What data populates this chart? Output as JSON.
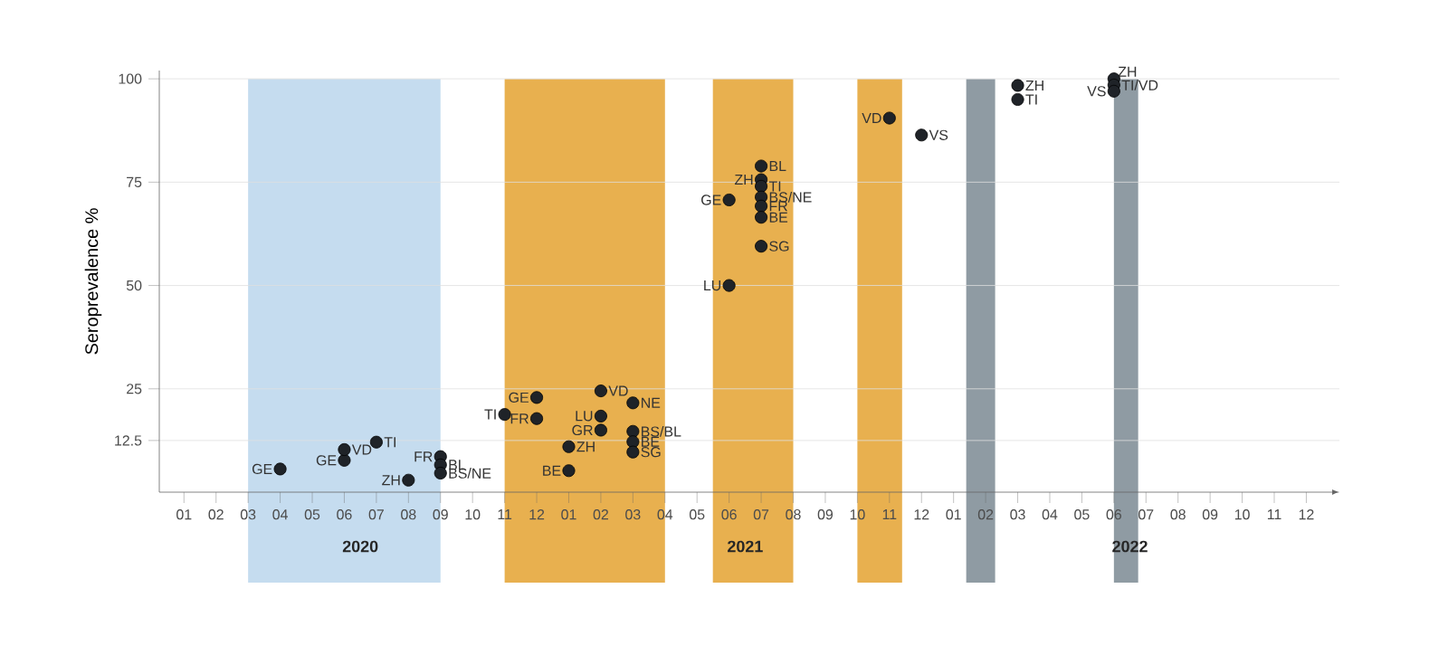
{
  "chart_data": {
    "type": "scatter",
    "ylabel": "Seroprevalence %",
    "xlim": [
      "2019-12-08",
      "2023-01-02"
    ],
    "ylim": [
      0,
      102
    ],
    "xticks": [
      {
        "value": "2020-01",
        "label": "01"
      },
      {
        "value": "2020-02",
        "label": "02"
      },
      {
        "value": "2020-03",
        "label": "03"
      },
      {
        "value": "2020-04",
        "label": "04"
      },
      {
        "value": "2020-05",
        "label": "05"
      },
      {
        "value": "2020-06",
        "label": "06"
      },
      {
        "value": "2020-07",
        "label": "07"
      },
      {
        "value": "2020-08",
        "label": "08"
      },
      {
        "value": "2020-09",
        "label": "09"
      },
      {
        "value": "2020-10",
        "label": "10"
      },
      {
        "value": "2020-11",
        "label": "11"
      },
      {
        "value": "2020-12",
        "label": "12"
      },
      {
        "value": "2021-01",
        "label": "01"
      },
      {
        "value": "2021-02",
        "label": "02"
      },
      {
        "value": "2021-03",
        "label": "03"
      },
      {
        "value": "2021-04",
        "label": "04"
      },
      {
        "value": "2021-05",
        "label": "05"
      },
      {
        "value": "2021-06",
        "label": "06"
      },
      {
        "value": "2021-07",
        "label": "07"
      },
      {
        "value": "2021-08",
        "label": "08"
      },
      {
        "value": "2021-09",
        "label": "09"
      },
      {
        "value": "2021-10",
        "label": "10"
      },
      {
        "value": "2021-11",
        "label": "11"
      },
      {
        "value": "2021-12",
        "label": "12"
      },
      {
        "value": "2022-01",
        "label": "01"
      },
      {
        "value": "2022-02",
        "label": "02"
      },
      {
        "value": "2022-03",
        "label": "03"
      },
      {
        "value": "2022-04",
        "label": "04"
      },
      {
        "value": "2022-05",
        "label": "05"
      },
      {
        "value": "2022-06",
        "label": "06"
      },
      {
        "value": "2022-07",
        "label": "07"
      },
      {
        "value": "2022-08",
        "label": "08"
      },
      {
        "value": "2022-09",
        "label": "09"
      },
      {
        "value": "2022-10",
        "label": "10"
      },
      {
        "value": "2022-11",
        "label": "11"
      },
      {
        "value": "2022-12",
        "label": "12"
      }
    ],
    "yticks": [
      12.5,
      25,
      50,
      75,
      100
    ],
    "grid": "y",
    "marker": "circle",
    "series": [
      {
        "color": "#1f2328",
        "x": [
          "2020-04",
          "2020-06",
          "2020-06",
          "2020-07",
          "2020-08",
          "2020-09",
          "2020-09",
          "2020-09",
          "2020-11",
          "2020-12",
          "2020-12",
          "2021-01",
          "2021-01",
          "2021-02",
          "2021-02",
          "2021-02",
          "2021-03",
          "2021-03",
          "2021-03",
          "2021-03",
          "2021-06",
          "2021-06",
          "2021-07",
          "2021-07",
          "2021-07",
          "2021-07",
          "2021-07",
          "2021-07",
          "2021-07",
          "2021-11",
          "2021-12",
          "2022-03",
          "2022-03",
          "2022-06",
          "2022-06",
          "2022-06"
        ],
        "values": [
          5.6,
          7.7,
          10.3,
          12.1,
          2.9,
          8.6,
          6.6,
          4.6,
          18.8,
          22.9,
          17.8,
          11.0,
          5.2,
          24.5,
          18.4,
          15.0,
          21.6,
          14.7,
          12.2,
          9.7,
          70.7,
          50.0,
          78.9,
          75.6,
          74.0,
          71.4,
          69.2,
          66.5,
          59.5,
          90.5,
          86.4,
          98.4,
          95.0,
          100,
          98.5,
          97.0
        ]
      }
    ],
    "bands": [
      {
        "axis": "x",
        "from": "2020-03",
        "to": "2020-09",
        "color": "#c5dcef"
      },
      {
        "axis": "x",
        "from": "2020-11",
        "to": "2021-04",
        "color": "#e8b04f"
      },
      {
        "axis": "x",
        "from": "2021-05-16",
        "to": "2021-08",
        "color": "#e8b04f"
      },
      {
        "axis": "x",
        "from": "2021-10",
        "to": "2021-11-13",
        "color": "#e8b04f"
      },
      {
        "axis": "x",
        "from": "2022-01-13",
        "to": "2022-02-10",
        "color": "#8f9ba3"
      },
      {
        "axis": "x",
        "from": "2022-06",
        "to": "2022-06-24",
        "color": "#8f9ba3"
      }
    ],
    "annotations": [
      {
        "text": "GE",
        "x": "2020-04",
        "y": 5.6
      },
      {
        "text": "GE",
        "x": "2020-06",
        "y": 7.7
      },
      {
        "text": "VD",
        "x": "2020-06",
        "y": 10.3
      },
      {
        "text": "TI",
        "x": "2020-07",
        "y": 12.1
      },
      {
        "text": "ZH",
        "x": "2020-08",
        "y": 2.9
      },
      {
        "text": "FR",
        "x": "2020-09",
        "y": 8.6
      },
      {
        "text": "BL",
        "x": "2020-09",
        "y": 6.6
      },
      {
        "text": "BS/NE",
        "x": "2020-09",
        "y": 4.6
      },
      {
        "text": "TI",
        "x": "2020-11",
        "y": 18.8
      },
      {
        "text": "GE",
        "x": "2020-12",
        "y": 22.9
      },
      {
        "text": "FR",
        "x": "2020-12",
        "y": 17.8
      },
      {
        "text": "ZH",
        "x": "2021-01",
        "y": 11.0
      },
      {
        "text": "BE",
        "x": "2021-01",
        "y": 5.2
      },
      {
        "text": "VD",
        "x": "2021-02",
        "y": 24.5
      },
      {
        "text": "LU",
        "x": "2021-02",
        "y": 18.4
      },
      {
        "text": "GR",
        "x": "2021-02",
        "y": 15.0
      },
      {
        "text": "NE",
        "x": "2021-03",
        "y": 21.6
      },
      {
        "text": "BS/BL",
        "x": "2021-03",
        "y": 14.7
      },
      {
        "text": "BE",
        "x": "2021-03",
        "y": 12.2
      },
      {
        "text": "SG",
        "x": "2021-03",
        "y": 9.7
      },
      {
        "text": "GE",
        "x": "2021-06",
        "y": 70.7
      },
      {
        "text": "LU",
        "x": "2021-06",
        "y": 50.0
      },
      {
        "text": "BL",
        "x": "2021-07",
        "y": 78.9
      },
      {
        "text": "ZH",
        "x": "2021-07",
        "y": 75.6
      },
      {
        "text": "TI",
        "x": "2021-07",
        "y": 74.0
      },
      {
        "text": "BS/NE",
        "x": "2021-07",
        "y": 71.4
      },
      {
        "text": "FR",
        "x": "2021-07",
        "y": 69.2
      },
      {
        "text": "BE",
        "x": "2021-07",
        "y": 66.5
      },
      {
        "text": "SG",
        "x": "2021-07",
        "y": 59.5
      },
      {
        "text": "VD",
        "x": "2021-11",
        "y": 90.5
      },
      {
        "text": "VS",
        "x": "2021-12",
        "y": 86.4
      },
      {
        "text": "ZH",
        "x": "2022-03",
        "y": 98.4
      },
      {
        "text": "TI",
        "x": "2022-03",
        "y": 95.0
      },
      {
        "text": "ZH",
        "x": "2022-06",
        "y": 100
      },
      {
        "text": "TI/VD",
        "x": "2022-06",
        "y": 98.5
      },
      {
        "text": "VS",
        "x": "2022-06",
        "y": 97.0
      },
      "2020",
      "2021",
      "2022"
    ]
  }
}
